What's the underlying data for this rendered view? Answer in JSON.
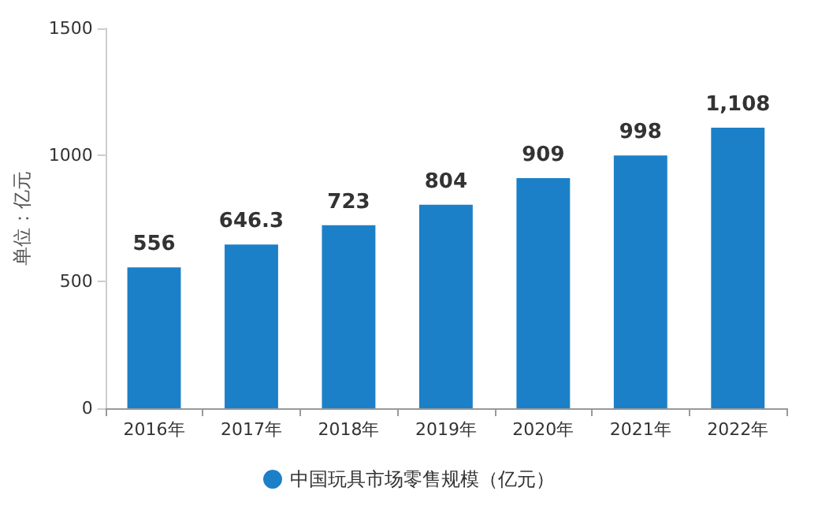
{
  "chart_data": {
    "type": "bar",
    "ylabel": "单位：亿元",
    "categories": [
      "2016年",
      "2017年",
      "2018年",
      "2019年",
      "2020年",
      "2021年",
      "2022年"
    ],
    "series": [
      {
        "name": "中国玩具市场零售规模（亿元）",
        "color": "#1b80c8",
        "values": [
          556,
          646.3,
          723,
          804,
          909,
          998,
          1108
        ],
        "value_labels": [
          "556",
          "646.3",
          "723",
          "804",
          "909",
          "998",
          "1,108"
        ]
      }
    ],
    "ylim": [
      0,
      1500
    ],
    "yticks": [
      0,
      500,
      1000,
      1500
    ],
    "grid": false,
    "legend": "bottom"
  }
}
